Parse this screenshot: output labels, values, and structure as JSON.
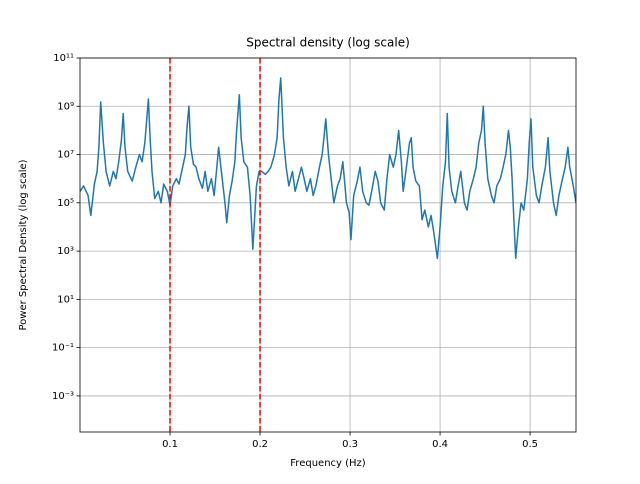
{
  "chart_data": {
    "type": "line",
    "title": "Spectral density (log scale)",
    "xlabel": "Frequency (Hz)",
    "ylabel": "Power Spectral Density (log scale)",
    "log_y": true,
    "grid": true,
    "xlim": [
      0,
      0.551
    ],
    "ylim": [
      3.2e-05,
      100000000000.0
    ],
    "xticks": [
      0.1,
      0.2,
      0.3,
      0.4,
      0.5
    ],
    "yticks": [
      {
        "value": 0.001,
        "label": "10⁻³"
      },
      {
        "value": 0.1,
        "label": "10⁻¹"
      },
      {
        "value": 10.0,
        "label": "10¹"
      },
      {
        "value": 1000.0,
        "label": "10³"
      },
      {
        "value": 100000.0,
        "label": "10⁵"
      },
      {
        "value": 10000000.0,
        "label": "10⁷"
      },
      {
        "value": 1000000000.0,
        "label": "10⁹"
      },
      {
        "value": 100000000000.0,
        "label": "10¹¹"
      }
    ],
    "vlines": [
      {
        "x": 0.1,
        "color": "#ff0000"
      },
      {
        "x": 0.2,
        "color": "#ff0000"
      }
    ],
    "x": [
      0.0,
      0.004,
      0.009,
      0.012,
      0.016,
      0.019,
      0.021,
      0.023,
      0.026,
      0.029,
      0.033,
      0.037,
      0.04,
      0.043,
      0.046,
      0.048,
      0.05,
      0.053,
      0.058,
      0.062,
      0.066,
      0.069,
      0.072,
      0.076,
      0.078,
      0.08,
      0.083,
      0.087,
      0.09,
      0.093,
      0.097,
      0.1,
      0.103,
      0.107,
      0.11,
      0.113,
      0.117,
      0.119,
      0.121,
      0.123,
      0.126,
      0.129,
      0.132,
      0.136,
      0.139,
      0.142,
      0.146,
      0.149,
      0.152,
      0.154,
      0.158,
      0.161,
      0.163,
      0.166,
      0.169,
      0.172,
      0.174,
      0.177,
      0.179,
      0.182,
      0.186,
      0.189,
      0.192,
      0.196,
      0.199,
      0.202,
      0.206,
      0.209,
      0.212,
      0.216,
      0.219,
      0.221,
      0.223,
      0.226,
      0.229,
      0.232,
      0.236,
      0.239,
      0.242,
      0.246,
      0.249,
      0.252,
      0.256,
      0.259,
      0.262,
      0.266,
      0.269,
      0.271,
      0.273,
      0.276,
      0.279,
      0.282,
      0.286,
      0.289,
      0.292,
      0.296,
      0.299,
      0.301,
      0.304,
      0.308,
      0.311,
      0.314,
      0.318,
      0.321,
      0.324,
      0.328,
      0.331,
      0.334,
      0.338,
      0.341,
      0.344,
      0.348,
      0.351,
      0.354,
      0.357,
      0.359,
      0.362,
      0.366,
      0.368,
      0.37,
      0.373,
      0.377,
      0.38,
      0.383,
      0.387,
      0.39,
      0.393,
      0.397,
      0.4,
      0.403,
      0.406,
      0.408,
      0.41,
      0.413,
      0.417,
      0.42,
      0.423,
      0.427,
      0.43,
      0.433,
      0.437,
      0.44,
      0.443,
      0.446,
      0.448,
      0.45,
      0.453,
      0.457,
      0.46,
      0.463,
      0.467,
      0.47,
      0.473,
      0.476,
      0.478,
      0.48,
      0.482,
      0.484,
      0.487,
      0.49,
      0.493,
      0.497,
      0.499,
      0.501,
      0.503,
      0.507,
      0.51,
      0.513,
      0.517,
      0.52,
      0.522,
      0.526,
      0.529,
      0.532,
      0.536,
      0.539,
      0.542,
      0.544,
      0.548,
      0.551
    ],
    "series": [
      {
        "color": "#1f77b4",
        "values": [
          300000.0,
          500000.0,
          200000.0,
          30000.0,
          600000.0,
          2000000.0,
          20000000.0,
          1500000000.0,
          30000000.0,
          2000000.0,
          500000.0,
          2000000.0,
          1000000.0,
          5000000.0,
          40000000.0,
          500000000.0,
          20000000.0,
          2000000.0,
          800000.0,
          3000000.0,
          10000000.0,
          5000000.0,
          30000000.0,
          2000000000.0,
          40000000.0,
          2000000.0,
          150000.0,
          300000.0,
          100000.0,
          600000.0,
          300000.0,
          80000.0,
          500000.0,
          1000000.0,
          600000.0,
          2000000.0,
          10000000.0,
          150000000.0,
          1000000000.0,
          20000000.0,
          4000000.0,
          3000000.0,
          1000000.0,
          400000.0,
          2000000.0,
          300000.0,
          1000000.0,
          200000.0,
          3000000.0,
          20000000.0,
          1000000.0,
          100000.0,
          15000.0,
          200000.0,
          800000.0,
          5000000.0,
          100000000.0,
          3000000000.0,
          50000000.0,
          5000000.0,
          3000000.0,
          200000.0,
          1200.0,
          500000.0,
          2000000.0,
          2000000.0,
          1500000.0,
          2000000.0,
          3000000.0,
          10000000.0,
          50000000.0,
          2000000000.0,
          15000000000.0,
          50000000.0,
          3000000.0,
          500000.0,
          2000000.0,
          300000.0,
          800000.0,
          3000000.0,
          1000000.0,
          300000.0,
          1000000.0,
          200000.0,
          500000.0,
          3000000.0,
          10000000.0,
          50000000.0,
          300000000.0,
          10000000.0,
          1000000.0,
          100000.0,
          500000.0,
          1000000.0,
          5000000.0,
          100000.0,
          40000.0,
          3000.0,
          200000.0,
          800000.0,
          3000000.0,
          300000.0,
          100000.0,
          80000.0,
          300000.0,
          2000000.0,
          800000.0,
          100000.0,
          50000.0,
          1000000.0,
          10000000.0,
          3000000.0,
          10000000.0,
          100000000.0,
          5000000.0,
          300000.0,
          2000000.0,
          30000000.0,
          50000000.0,
          3000000.0,
          800000.0,
          500000.0,
          20000.0,
          50000.0,
          10000.0,
          30000.0,
          6000.0,
          500.0,
          10000.0,
          500000.0,
          5000000.0,
          500000000.0,
          3000000.0,
          300000.0,
          100000.0,
          500000.0,
          2000000.0,
          100000.0,
          50000.0,
          300000.0,
          1000000.0,
          3000000.0,
          30000000.0,
          100000000.0,
          1000000000.0,
          30000000.0,
          1000000.0,
          200000.0,
          100000.0,
          500000.0,
          1000000.0,
          3000000.0,
          10000000.0,
          100000000.0,
          20000000.0,
          1000000.0,
          20000.0,
          500.0,
          10000.0,
          100000.0,
          50000.0,
          1000000.0,
          30000000.0,
          300000000.0,
          3000000.0,
          200000.0,
          100000.0,
          500000.0,
          3000000.0,
          50000000.0,
          2000000.0,
          100000.0,
          30000.0,
          200000.0,
          1000000.0,
          3000000.0,
          20000000.0,
          3000000.0,
          500000.0,
          100000.0
        ]
      }
    ]
  }
}
